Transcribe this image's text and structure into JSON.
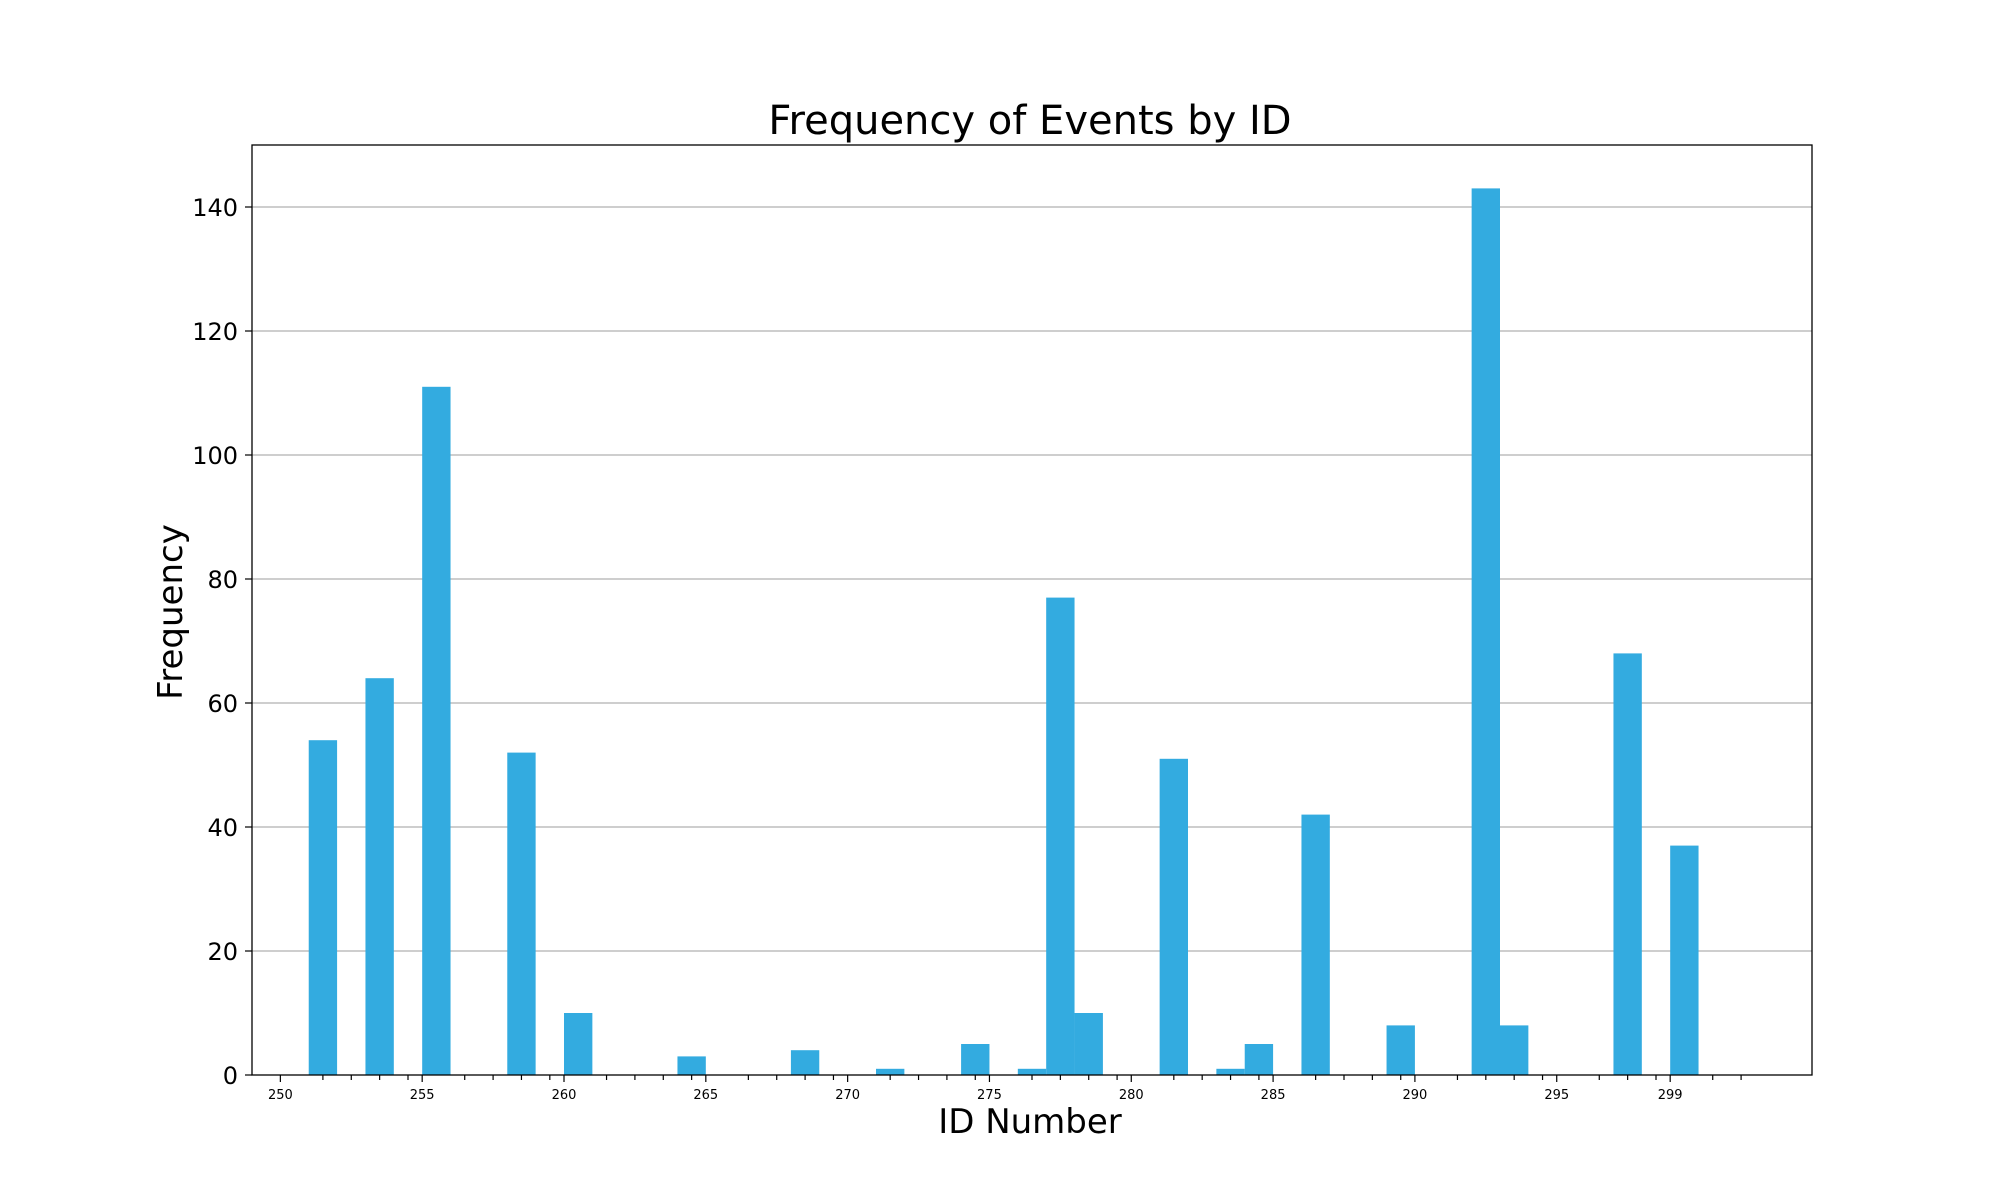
{
  "chart_data": {
    "type": "bar",
    "title": "Frequency of Events by ID",
    "xlabel": "ID Number",
    "ylabel": "Frequency",
    "xlim": [
      249,
      304
    ],
    "ylim": [
      0,
      150
    ],
    "yticks": [
      0,
      20,
      40,
      60,
      80,
      100,
      120,
      140
    ],
    "xticks": [
      250,
      255,
      260,
      265,
      270,
      275,
      280,
      285,
      290,
      295,
      299
    ],
    "xminor_ticks": [
      251.5,
      252.5,
      253.5,
      254.5,
      256.5,
      257.5,
      258.5,
      259.5,
      261.5,
      262.5,
      263.5,
      264.5,
      266.5,
      267.5,
      268.5,
      269.5,
      271.5,
      272.5,
      273.5,
      274.5,
      276.5,
      277.5,
      278.5,
      279.5,
      281.5,
      282.5,
      283.5,
      284.5,
      286.5,
      287.5,
      288.5,
      289.5,
      291.5,
      292.5,
      293.5,
      294.5,
      296.5,
      297.5,
      298.5,
      300.5,
      301.5
    ],
    "bin_width": 1,
    "bars": [
      {
        "start": 251,
        "value": 54
      },
      {
        "start": 253,
        "value": 64
      },
      {
        "start": 255,
        "value": 111
      },
      {
        "start": 258,
        "value": 52
      },
      {
        "start": 260,
        "value": 10
      },
      {
        "start": 264,
        "value": 3
      },
      {
        "start": 268,
        "value": 4
      },
      {
        "start": 271,
        "value": 1
      },
      {
        "start": 274,
        "value": 5
      },
      {
        "start": 276,
        "value": 1
      },
      {
        "start": 277,
        "value": 77
      },
      {
        "start": 278,
        "value": 10
      },
      {
        "start": 281,
        "value": 51
      },
      {
        "start": 283,
        "value": 1
      },
      {
        "start": 284,
        "value": 5
      },
      {
        "start": 286,
        "value": 42
      },
      {
        "start": 289,
        "value": 8
      },
      {
        "start": 292,
        "value": 143
      },
      {
        "start": 293,
        "value": 8
      },
      {
        "start": 297,
        "value": 68
      },
      {
        "start": 299,
        "value": 37
      }
    ],
    "bar_color": "#33abe0",
    "grid": "y-major"
  }
}
